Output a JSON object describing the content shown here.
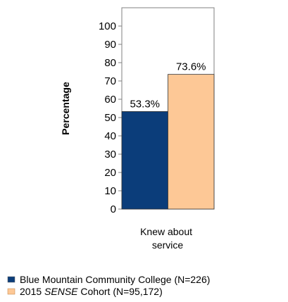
{
  "chart_data": {
    "type": "bar",
    "categories": [
      "Knew about service"
    ],
    "category_label_lines": [
      "Knew about",
      "service"
    ],
    "series": [
      {
        "name": "Blue Mountain Community College (N=226)",
        "values": [
          53.3
        ],
        "labels": [
          "53.3%"
        ],
        "color": "#0b3d7a"
      },
      {
        "name_prefix": "2015 ",
        "name_italic": "SENSE",
        "name_suffix": " Cohort (N=95,172)",
        "values": [
          73.6
        ],
        "labels": [
          "73.6%"
        ],
        "color": "#fdc896"
      }
    ],
    "ylabel": "Percentage",
    "ylim": [
      0,
      110
    ],
    "yticks": [
      "0",
      "10",
      "20",
      "30",
      "40",
      "50",
      "60",
      "70",
      "80",
      "90",
      "100"
    ],
    "legend_position": "bottom-left",
    "grid": false
  }
}
